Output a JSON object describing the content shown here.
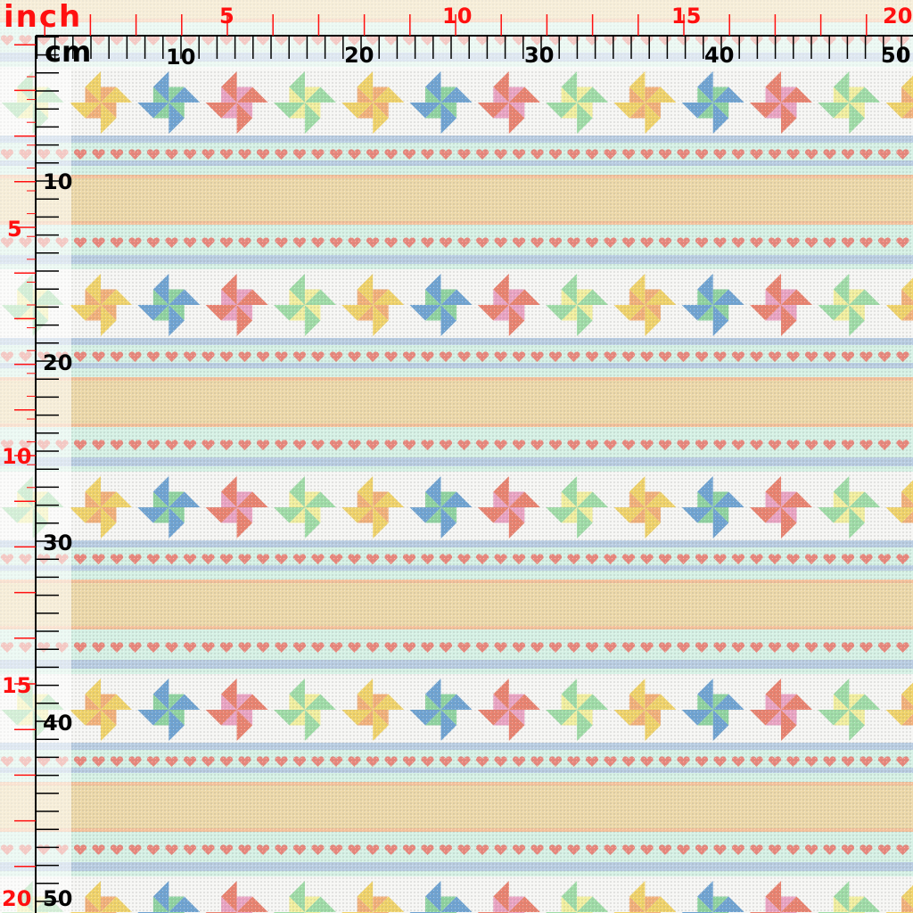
{
  "rulers": {
    "inch_label": "inch",
    "cm_label": "cm",
    "inch_top": [
      "5",
      "10",
      "15",
      "20"
    ],
    "inch_left": [
      "5",
      "10",
      "15",
      "20"
    ],
    "cm_top": [
      "10",
      "20",
      "30",
      "40",
      "50"
    ],
    "cm_left": [
      "10",
      "20",
      "30",
      "40",
      "50"
    ],
    "inch_color": "#ff1010",
    "cm_color": "#000000"
  },
  "pattern": {
    "background": "#f6f6f4",
    "stripe_blue": "#b9cde2",
    "mint": "#d6f1e5",
    "orange_line": "#f4c29c",
    "tan_band": "#edd9aa",
    "heart_color": "#e9877c",
    "pinwheel_palettes": [
      [
        "#f0d36a",
        "#f2b07a"
      ],
      [
        "#6fa3d2",
        "#8fd3a0"
      ],
      [
        "#e9826f",
        "#eaa3c3"
      ],
      [
        "#9fdca7",
        "#f2ef9f"
      ]
    ]
  }
}
